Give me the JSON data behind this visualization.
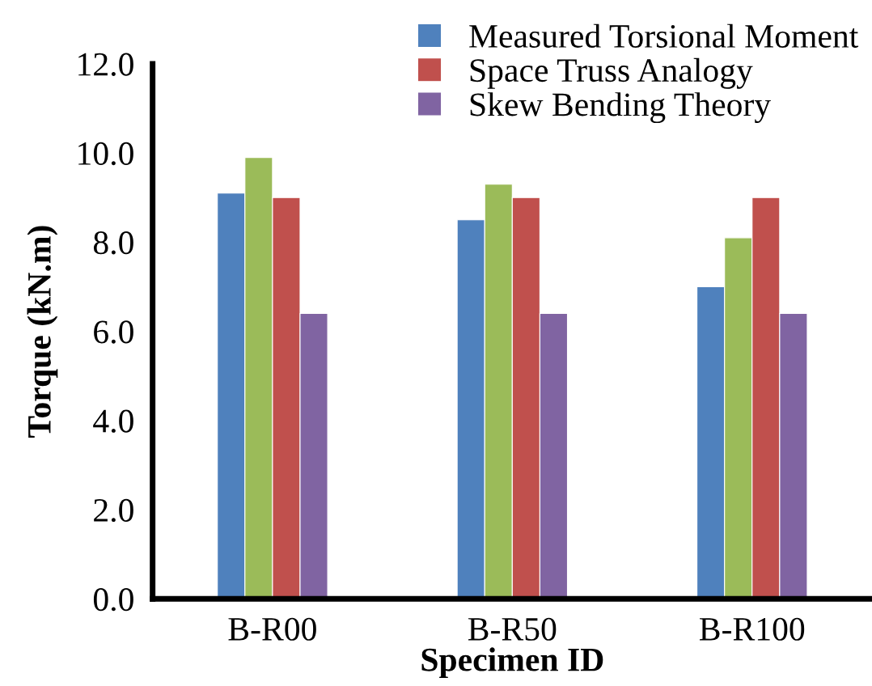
{
  "chart_data": {
    "type": "bar",
    "xlabel": "Specimen ID",
    "ylabel": "Torque (kN.m)",
    "categories": [
      "B-R00",
      "B-R50",
      "B-R100"
    ],
    "series": [
      {
        "name": "Measured Torsional Moment",
        "color": "#4f81bd",
        "values": [
          9.1,
          8.5,
          7.0
        ]
      },
      {
        "color": "#9bbb59",
        "values": [
          9.9,
          9.3,
          8.1
        ]
      },
      {
        "name": "Space Truss Analogy",
        "color": "#c0504d",
        "values": [
          9.0,
          9.0,
          9.0
        ]
      },
      {
        "name": "Skew Bending Theory",
        "color": "#8064a2",
        "values": [
          6.4,
          6.4,
          6.4
        ]
      }
    ],
    "ylim": [
      0,
      12
    ],
    "yticks": [
      {
        "value": 0,
        "label": "0.0"
      },
      {
        "value": 2,
        "label": "2.0"
      },
      {
        "value": 4,
        "label": "4.0"
      },
      {
        "value": 6,
        "label": "6.0"
      },
      {
        "value": 8,
        "label": "8.0"
      },
      {
        "value": 10,
        "label": "10.0"
      },
      {
        "value": 12,
        "label": "12.0"
      }
    ],
    "grid": false,
    "legend": "top right"
  }
}
